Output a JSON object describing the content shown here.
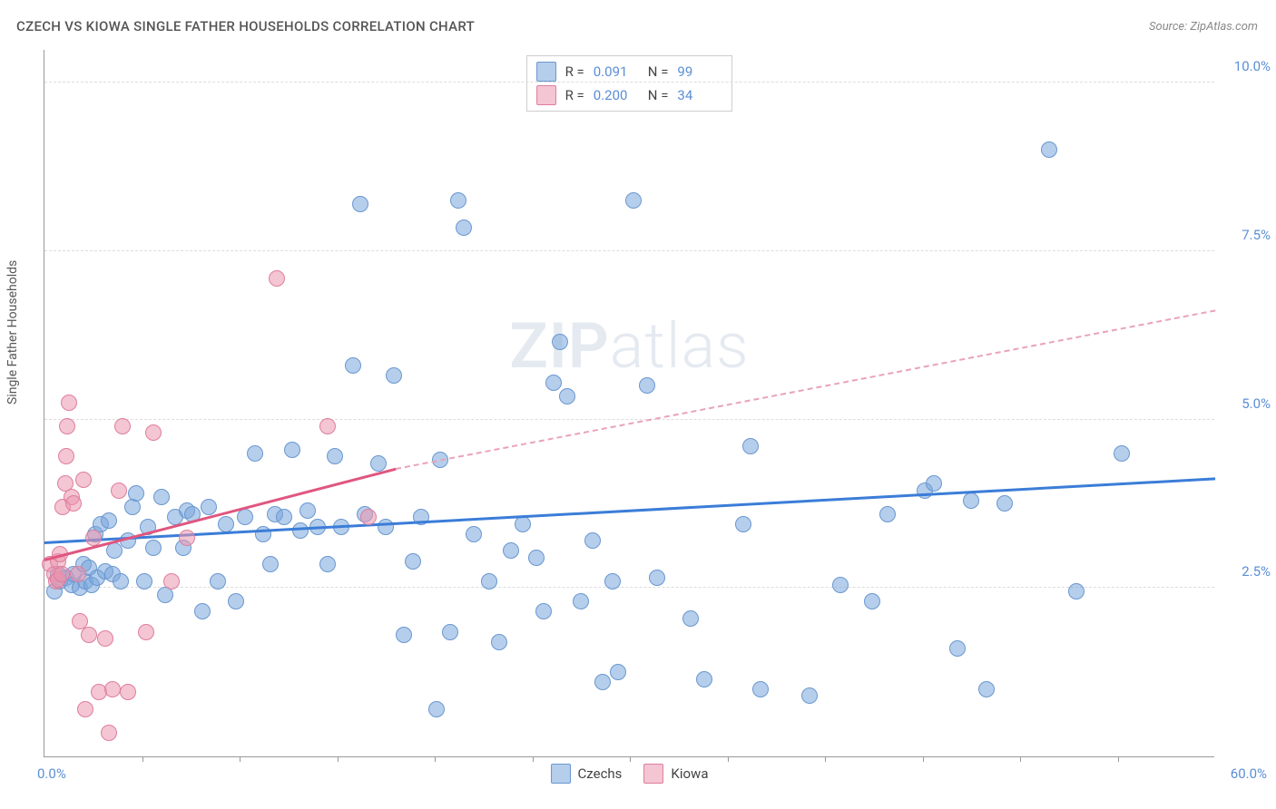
{
  "title": "CZECH VS KIOWA SINGLE FATHER HOUSEHOLDS CORRELATION CHART",
  "source": "Source: ZipAtlas.com",
  "ylabel": "Single Father Households",
  "watermark_bold": "ZIP",
  "watermark_light": "atlas",
  "chart": {
    "type": "scatter",
    "xlim": [
      0,
      60
    ],
    "ylim": [
      0,
      10.5
    ],
    "x_min_label": "0.0%",
    "x_max_label": "60.0%",
    "y_ticks": [
      2.5,
      5.0,
      7.5,
      10.0
    ],
    "y_tick_labels": [
      "2.5%",
      "5.0%",
      "7.5%",
      "10.0%"
    ],
    "x_minor_ticks": [
      5,
      10,
      15,
      20,
      25,
      30,
      35,
      40,
      45,
      50,
      55
    ],
    "grid_color": "#dddddd",
    "background_color": "#ffffff",
    "point_radius": 9,
    "series": [
      {
        "name": "Czechs",
        "fill": "rgba(120,165,220,0.55)",
        "stroke": "#6a97cf",
        "r_label": "R =",
        "r_value": "0.091",
        "n_label": "N =",
        "n_value": "99",
        "trend": {
          "x1": 0,
          "y1": 3.15,
          "x2": 60,
          "y2": 4.1,
          "color": "#3b7dd8",
          "width": 3,
          "dash": false
        },
        "points": [
          [
            0.5,
            2.45
          ],
          [
            0.7,
            2.7
          ],
          [
            0.8,
            2.6
          ],
          [
            1.1,
            2.65
          ],
          [
            1.4,
            2.55
          ],
          [
            1.5,
            2.7
          ],
          [
            1.8,
            2.5
          ],
          [
            2.0,
            2.85
          ],
          [
            2.1,
            2.6
          ],
          [
            2.3,
            2.8
          ],
          [
            2.4,
            2.55
          ],
          [
            2.6,
            3.3
          ],
          [
            2.7,
            2.65
          ],
          [
            2.9,
            3.45
          ],
          [
            3.1,
            2.75
          ],
          [
            3.3,
            3.5
          ],
          [
            3.5,
            2.7
          ],
          [
            3.6,
            3.05
          ],
          [
            3.9,
            2.6
          ],
          [
            4.3,
            3.2
          ],
          [
            4.5,
            3.7
          ],
          [
            4.7,
            3.9
          ],
          [
            5.1,
            2.6
          ],
          [
            5.3,
            3.4
          ],
          [
            5.6,
            3.1
          ],
          [
            6.0,
            3.85
          ],
          [
            6.2,
            2.4
          ],
          [
            6.7,
            3.55
          ],
          [
            7.1,
            3.1
          ],
          [
            7.3,
            3.65
          ],
          [
            7.6,
            3.6
          ],
          [
            8.1,
            2.15
          ],
          [
            8.4,
            3.7
          ],
          [
            8.9,
            2.6
          ],
          [
            9.3,
            3.45
          ],
          [
            9.8,
            2.3
          ],
          [
            10.3,
            3.55
          ],
          [
            10.8,
            4.5
          ],
          [
            11.2,
            3.3
          ],
          [
            11.6,
            2.85
          ],
          [
            11.8,
            3.6
          ],
          [
            12.3,
            3.55
          ],
          [
            12.7,
            4.55
          ],
          [
            13.1,
            3.35
          ],
          [
            13.5,
            3.65
          ],
          [
            14.0,
            3.4
          ],
          [
            14.5,
            2.85
          ],
          [
            14.9,
            4.45
          ],
          [
            15.2,
            3.4
          ],
          [
            15.8,
            5.8
          ],
          [
            16.2,
            8.2
          ],
          [
            16.4,
            3.6
          ],
          [
            17.1,
            4.35
          ],
          [
            17.5,
            3.4
          ],
          [
            17.9,
            5.65
          ],
          [
            18.4,
            1.8
          ],
          [
            18.9,
            2.9
          ],
          [
            19.3,
            3.55
          ],
          [
            20.1,
            0.7
          ],
          [
            20.3,
            4.4
          ],
          [
            20.8,
            1.85
          ],
          [
            21.2,
            8.25
          ],
          [
            21.5,
            7.85
          ],
          [
            22.0,
            3.3
          ],
          [
            22.8,
            2.6
          ],
          [
            23.3,
            1.7
          ],
          [
            23.9,
            3.05
          ],
          [
            24.5,
            3.45
          ],
          [
            25.2,
            2.95
          ],
          [
            25.6,
            2.15
          ],
          [
            26.1,
            5.55
          ],
          [
            26.4,
            6.15
          ],
          [
            26.8,
            5.35
          ],
          [
            27.5,
            2.3
          ],
          [
            28.1,
            3.2
          ],
          [
            28.6,
            1.1
          ],
          [
            29.1,
            2.6
          ],
          [
            29.4,
            1.25
          ],
          [
            30.2,
            8.25
          ],
          [
            30.9,
            5.5
          ],
          [
            31.4,
            2.65
          ],
          [
            33.1,
            2.05
          ],
          [
            33.8,
            1.15
          ],
          [
            35.8,
            3.45
          ],
          [
            36.2,
            4.6
          ],
          [
            36.7,
            1.0
          ],
          [
            39.2,
            0.9
          ],
          [
            40.8,
            2.55
          ],
          [
            42.4,
            2.3
          ],
          [
            43.2,
            3.6
          ],
          [
            45.1,
            3.95
          ],
          [
            45.6,
            4.05
          ],
          [
            46.8,
            1.6
          ],
          [
            47.5,
            3.8
          ],
          [
            48.3,
            1.0
          ],
          [
            49.2,
            3.75
          ],
          [
            51.5,
            9.0
          ],
          [
            52.9,
            2.45
          ],
          [
            55.2,
            4.5
          ]
        ]
      },
      {
        "name": "Kiowa",
        "fill": "rgba(235,150,175,0.55)",
        "stroke": "#de7e9e",
        "r_label": "R =",
        "r_value": "0.200",
        "n_label": "N =",
        "n_value": "34",
        "trend_solid": {
          "x1": 0,
          "y1": 2.9,
          "x2": 18,
          "y2": 4.25,
          "color": "#e0567f",
          "width": 3,
          "dash": false
        },
        "trend_dash": {
          "x1": 18,
          "y1": 4.25,
          "x2": 60,
          "y2": 6.6,
          "color": "#e9a3b8",
          "width": 2,
          "dash": true
        },
        "points": [
          [
            0.3,
            2.85
          ],
          [
            0.5,
            2.7
          ],
          [
            0.6,
            2.6
          ],
          [
            0.7,
            2.62
          ],
          [
            0.7,
            2.9
          ],
          [
            0.8,
            3.0
          ],
          [
            0.9,
            2.7
          ],
          [
            0.95,
            3.7
          ],
          [
            1.05,
            4.05
          ],
          [
            1.1,
            4.45
          ],
          [
            1.15,
            4.9
          ],
          [
            1.25,
            5.25
          ],
          [
            1.4,
            3.85
          ],
          [
            1.5,
            3.75
          ],
          [
            1.7,
            2.7
          ],
          [
            1.8,
            2.0
          ],
          [
            2.0,
            4.1
          ],
          [
            2.1,
            0.7
          ],
          [
            2.3,
            1.8
          ],
          [
            2.5,
            3.25
          ],
          [
            2.8,
            0.95
          ],
          [
            3.1,
            1.75
          ],
          [
            3.3,
            0.35
          ],
          [
            3.5,
            1.0
          ],
          [
            3.8,
            3.95
          ],
          [
            4.0,
            4.9
          ],
          [
            4.3,
            0.95
          ],
          [
            5.2,
            1.85
          ],
          [
            5.6,
            4.8
          ],
          [
            6.5,
            2.6
          ],
          [
            7.3,
            3.25
          ],
          [
            11.9,
            7.1
          ],
          [
            14.5,
            4.9
          ],
          [
            16.6,
            3.55
          ]
        ]
      }
    ]
  },
  "legend_bottom": [
    {
      "label": "Czechs",
      "fill": "rgba(120,165,220,0.55)",
      "stroke": "#6a97cf"
    },
    {
      "label": "Kiowa",
      "fill": "rgba(235,150,175,0.55)",
      "stroke": "#de7e9e"
    }
  ]
}
